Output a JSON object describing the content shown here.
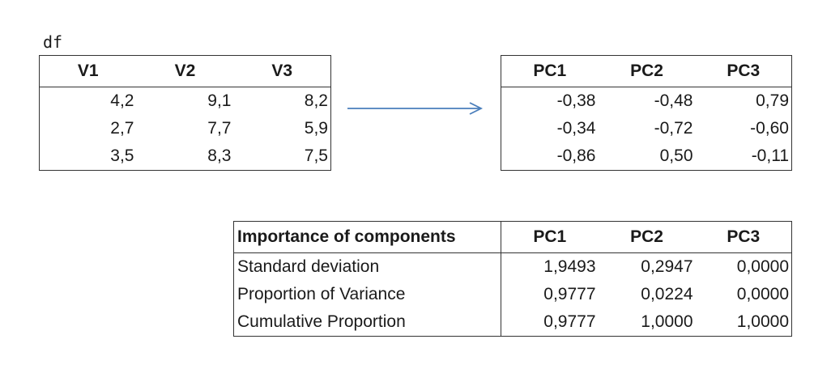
{
  "df_label": "df",
  "df_table": {
    "headers": [
      "V1",
      "V2",
      "V3"
    ],
    "rows": [
      [
        "4,2",
        "9,1",
        "8,2"
      ],
      [
        "2,7",
        "7,7",
        "5,9"
      ],
      [
        "3,5",
        "8,3",
        "7,5"
      ]
    ]
  },
  "pc_table": {
    "headers": [
      "PC1",
      "PC2",
      "PC3"
    ],
    "rows": [
      [
        "-0,38",
        "-0,48",
        "0,79"
      ],
      [
        "-0,34",
        "-0,72",
        "-0,60"
      ],
      [
        "-0,86",
        "0,50",
        "-0,11"
      ]
    ]
  },
  "importance_table": {
    "title": "Importance of components",
    "headers": [
      "PC1",
      "PC2",
      "PC3"
    ],
    "rows": [
      {
        "label": "Standard deviation",
        "values": [
          "1,9493",
          "0,2947",
          "0,0000"
        ]
      },
      {
        "label": "Proportion of Variance",
        "values": [
          "0,9777",
          "0,0224",
          "0,0000"
        ]
      },
      {
        "label": "Cumulative Proportion",
        "values": [
          "0,9777",
          "1,0000",
          "1,0000"
        ]
      }
    ]
  },
  "colors": {
    "arrow": "#4a7ebb",
    "border": "#333333",
    "text": "#1a1a1a"
  }
}
